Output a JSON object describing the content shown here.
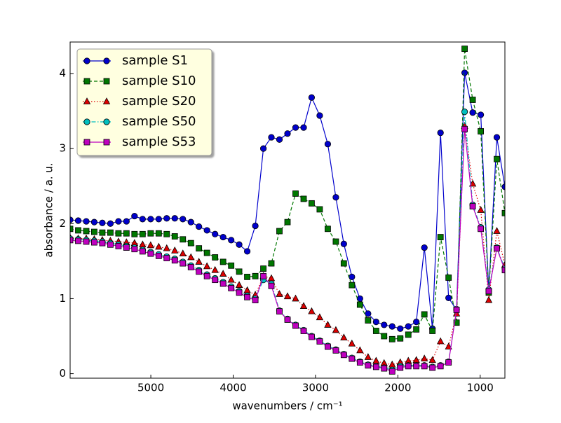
{
  "chart_data": {
    "type": "line",
    "xlabel": "wavenumbers / cm⁻¹",
    "ylabel": "absorbance / a. u.",
    "x": [
      5980,
      5882,
      5784,
      5687,
      5589,
      5491,
      5393,
      5296,
      5198,
      5100,
      5002,
      4904,
      4807,
      4709,
      4611,
      4513,
      4416,
      4318,
      4220,
      4122,
      4024,
      3927,
      3829,
      3731,
      3633,
      3536,
      3438,
      3340,
      3242,
      3144,
      3047,
      2949,
      2851,
      2753,
      2656,
      2558,
      2460,
      2362,
      2264,
      2167,
      2069,
      1971,
      1873,
      1776,
      1678,
      1580,
      1482,
      1384,
      1287,
      1189,
      1091,
      993,
      896,
      798,
      700
    ],
    "xlim": [
      5980,
      700
    ],
    "ylim": [
      -0.06,
      4.42
    ],
    "xticks": [
      5000,
      4000,
      3000,
      2000,
      1000
    ],
    "yticks": [
      0,
      1,
      2,
      3,
      4
    ],
    "legend": "upper left",
    "series": [
      {
        "name": "sample S1",
        "color": "#0000cc",
        "marker": "circle",
        "linestyle": "solid",
        "values": [
          2.05,
          2.04,
          2.03,
          2.02,
          2.01,
          2.0,
          2.03,
          2.03,
          2.1,
          2.06,
          2.06,
          2.06,
          2.07,
          2.07,
          2.06,
          2.02,
          1.96,
          1.91,
          1.86,
          1.82,
          1.78,
          1.72,
          1.63,
          1.97,
          3.0,
          3.15,
          3.12,
          3.2,
          3.28,
          3.28,
          3.68,
          3.44,
          3.06,
          2.35,
          1.73,
          1.29,
          1.0,
          0.8,
          0.69,
          0.65,
          0.63,
          0.6,
          0.63,
          0.69,
          1.68,
          0.6,
          3.21,
          1.01,
          0.85,
          4.01,
          3.48,
          3.45,
          1.1,
          3.15,
          2.49
        ]
      },
      {
        "name": "sample S10",
        "color": "#007700",
        "marker": "square",
        "linestyle": "dashed",
        "values": [
          1.93,
          1.91,
          1.9,
          1.89,
          1.88,
          1.88,
          1.87,
          1.87,
          1.86,
          1.86,
          1.87,
          1.87,
          1.86,
          1.83,
          1.79,
          1.74,
          1.67,
          1.61,
          1.55,
          1.49,
          1.44,
          1.36,
          1.29,
          1.3,
          1.4,
          1.47,
          1.9,
          2.02,
          2.4,
          2.33,
          2.27,
          2.19,
          1.93,
          1.76,
          1.47,
          1.18,
          0.92,
          0.71,
          0.57,
          0.5,
          0.46,
          0.47,
          0.52,
          0.59,
          0.79,
          0.57,
          1.82,
          1.28,
          0.68,
          4.33,
          3.65,
          3.23,
          1.08,
          2.86,
          2.14
        ]
      },
      {
        "name": "sample S20",
        "color": "#dd0000",
        "marker": "triangle",
        "linestyle": "dotted",
        "values": [
          1.81,
          1.8,
          1.8,
          1.79,
          1.78,
          1.77,
          1.76,
          1.75,
          1.74,
          1.72,
          1.71,
          1.69,
          1.67,
          1.64,
          1.6,
          1.55,
          1.49,
          1.43,
          1.38,
          1.33,
          1.25,
          1.18,
          1.11,
          1.05,
          1.3,
          1.27,
          1.06,
          1.03,
          1.0,
          0.9,
          0.83,
          0.75,
          0.65,
          0.58,
          0.48,
          0.4,
          0.31,
          0.22,
          0.17,
          0.14,
          0.12,
          0.15,
          0.17,
          0.18,
          0.2,
          0.18,
          0.43,
          0.36,
          0.8,
          3.3,
          2.53,
          2.18,
          0.98,
          1.9,
          1.45
        ]
      },
      {
        "name": "sample S50",
        "color": "#00bfbf",
        "marker": "circle",
        "linestyle": "dashdot",
        "values": [
          1.8,
          1.79,
          1.78,
          1.77,
          1.76,
          1.74,
          1.72,
          1.7,
          1.68,
          1.65,
          1.62,
          1.59,
          1.56,
          1.53,
          1.49,
          1.44,
          1.38,
          1.32,
          1.27,
          1.22,
          1.16,
          1.1,
          1.04,
          1.0,
          1.25,
          1.2,
          0.84,
          0.73,
          0.65,
          0.58,
          0.5,
          0.44,
          0.37,
          0.32,
          0.26,
          0.21,
          0.16,
          0.12,
          0.1,
          0.08,
          0.05,
          0.1,
          0.11,
          0.11,
          0.11,
          0.09,
          0.11,
          0.16,
          0.86,
          3.49,
          2.25,
          1.95,
          1.12,
          1.68,
          1.4
        ]
      },
      {
        "name": "sample S53",
        "color": "#bf00bf",
        "marker": "square",
        "linestyle": "solid",
        "values": [
          1.78,
          1.77,
          1.76,
          1.75,
          1.74,
          1.72,
          1.7,
          1.68,
          1.66,
          1.63,
          1.6,
          1.57,
          1.54,
          1.51,
          1.47,
          1.42,
          1.36,
          1.3,
          1.25,
          1.2,
          1.14,
          1.08,
          1.02,
          0.98,
          1.3,
          1.17,
          0.83,
          0.72,
          0.64,
          0.57,
          0.49,
          0.43,
          0.36,
          0.31,
          0.25,
          0.2,
          0.15,
          0.11,
          0.09,
          0.07,
          0.03,
          0.08,
          0.1,
          0.1,
          0.1,
          0.08,
          0.1,
          0.15,
          0.85,
          3.26,
          2.23,
          1.93,
          1.1,
          1.67,
          1.38
        ]
      }
    ]
  }
}
